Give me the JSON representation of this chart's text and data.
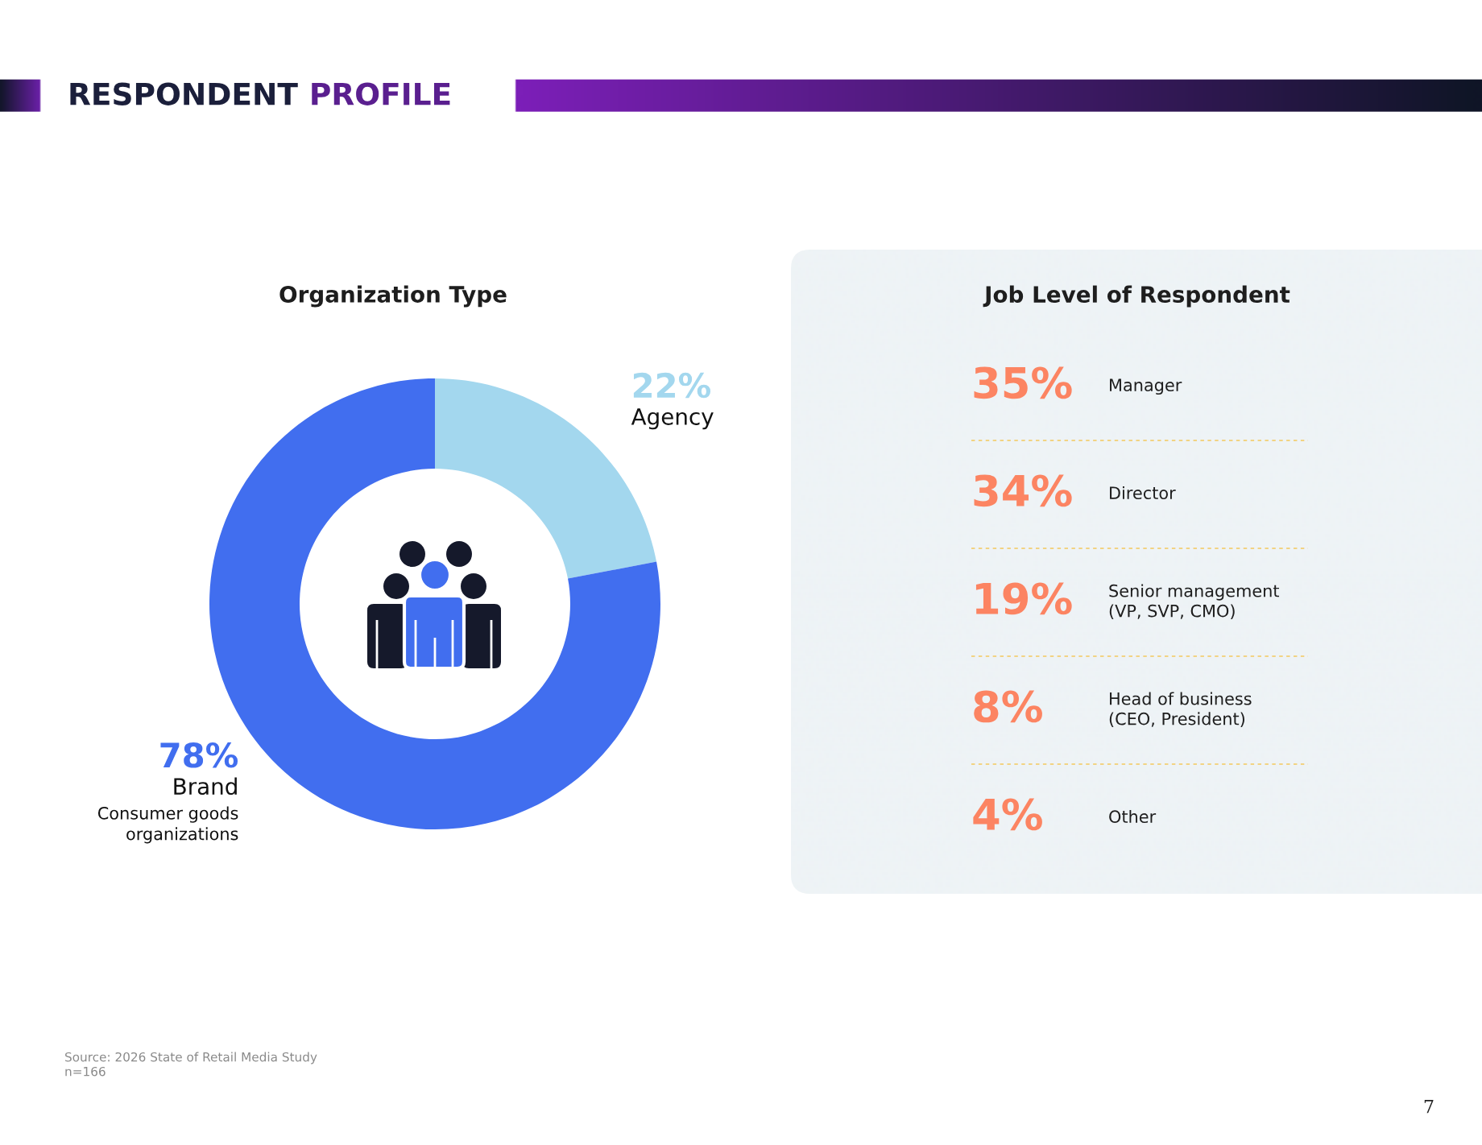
{
  "chart_data": [
    {
      "type": "other",
      "title": "RESPONDENT PROFILE",
      "annotations": [
        "Source: 2026 State of Retail Media Study",
        "n=166",
        "7"
      ]
    },
    {
      "type": "donut",
      "title": "Organization Type",
      "categories": [
        "Agency",
        "Brand"
      ],
      "values": [
        22,
        78
      ],
      "value_labels": [
        "22%",
        "78%"
      ],
      "colors": [
        "#a3d7ee",
        "#416eef"
      ],
      "annotations": [
        "Consumer goods\norganizations"
      ]
    },
    {
      "type": "other",
      "title": "Job Level of Respondent",
      "categories": [
        "Manager",
        "Director",
        "Senior management\n(VP, SVP, CMO)",
        "Head of business\n(CEO, President)",
        "Other"
      ],
      "values": [
        35,
        34,
        19,
        8,
        4
      ],
      "value_labels": [
        "35%",
        "34%",
        "19%",
        "8%",
        "4%"
      ],
      "color": "#fc8462"
    }
  ]
}
